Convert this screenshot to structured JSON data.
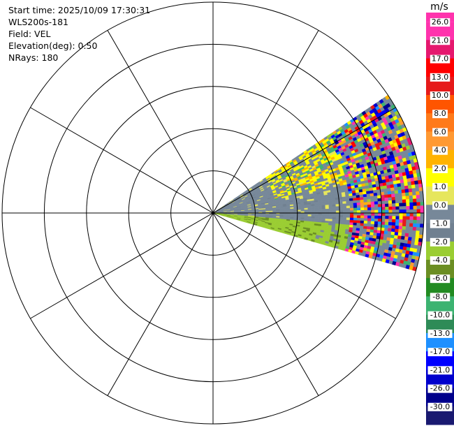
{
  "info": {
    "start_time": "Start time: 2025/10/09 17:30:31",
    "instrument": "WLS200s-181",
    "field": "Field: VEL",
    "elevation": "Elevation(deg): 0.50",
    "nrays": "NRays: 180"
  },
  "colorbar": {
    "unit": "m/s",
    "labels": [
      "26.0",
      "21.0",
      "17.0",
      "13.0",
      "10.0",
      "8.0",
      "6.0",
      "4.0",
      "2.0",
      "1.0",
      "0.0",
      "-1.0",
      "-2.0",
      "-4.0",
      "-6.0",
      "-8.0",
      "-10.0",
      "-13.0",
      "-17.0",
      "-21.0",
      "-26.0",
      "-30.0"
    ],
    "colors": [
      "#ff33ad",
      "#e5186e",
      "#ff0000",
      "#e61a1a",
      "#ff5500",
      "#ff7a1a",
      "#ff9933",
      "#ffb300",
      "#ffff00",
      "#e6e65c",
      "#778899",
      "#708090",
      "#9acd32",
      "#6b8e23",
      "#228b22",
      "#3cb371",
      "#2e8b57",
      "#1e90ff",
      "#0000ff",
      "#0000cd",
      "#00008b",
      "#191970"
    ],
    "top_color": "#ff33ad",
    "bottom_color": "#191970"
  },
  "chart_data": {
    "type": "ppi",
    "field": "VEL",
    "unit": "m/s",
    "range_rings": 5,
    "spokes_deg": 30,
    "sector_azimuth_deg": [
      56,
      106
    ],
    "regions": [
      {
        "name": "near-negative",
        "azimuth_deg": [
          95,
          106
        ],
        "range_frac": [
          0.0,
          0.7
        ],
        "value": -2.0
      },
      {
        "name": "near-zero",
        "azimuth_deg": [
          64,
          98
        ],
        "range_frac": [
          0.0,
          0.65
        ],
        "value": 0.0
      },
      {
        "name": "weak-positive",
        "azimuth_deg": [
          62,
          78
        ],
        "range_frac": [
          0.3,
          0.6
        ],
        "value": 3.0
      },
      {
        "name": "noisy-edge",
        "azimuth_deg": [
          56,
          106
        ],
        "range_frac": [
          0.65,
          1.0
        ],
        "value": "mixed"
      }
    ]
  }
}
